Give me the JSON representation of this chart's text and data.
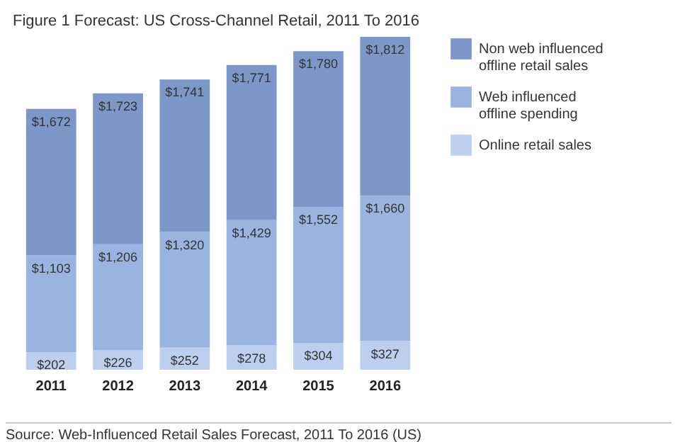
{
  "chart_data": {
    "type": "bar",
    "title": "Figure 1 Forecast: US Cross-Channel Retail, 2011 To 2016",
    "categories": [
      "2011",
      "2012",
      "2013",
      "2014",
      "2015",
      "2016"
    ],
    "stacked": true,
    "legend": "right",
    "series": [
      {
        "name": "Online retail sales",
        "color": "#bccfee",
        "values": [
          202,
          226,
          252,
          278,
          304,
          327
        ],
        "value_labels": [
          "$202",
          "$226",
          "$252",
          "$278",
          "$304",
          "$327"
        ]
      },
      {
        "name": "Web influenced offline spending",
        "color": "#99b4e0",
        "values": [
          1103,
          1206,
          1320,
          1429,
          1552,
          1660
        ],
        "value_labels": [
          "$1,103",
          "$1,206",
          "$1,320",
          "$1,429",
          "$1,552",
          "$1,660"
        ]
      },
      {
        "name": "Non web influenced offline retail sales",
        "color": "#7d97c9",
        "values": [
          1672,
          1723,
          1741,
          1771,
          1780,
          1812
        ],
        "value_labels": [
          "$1,672",
          "$1,723",
          "$1,741",
          "$1,771",
          "$1,780",
          "$1,812"
        ]
      }
    ],
    "annotations": [
      "Source: Web-Influenced Retail Sales Forecast, 2011 To 2016 (US)"
    ]
  }
}
